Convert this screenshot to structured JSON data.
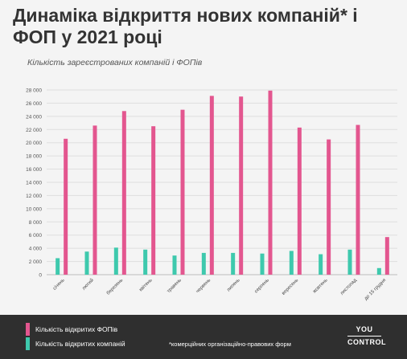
{
  "title": "Динаміка відкриття нових компаній* і ФОП у 2021 році",
  "subtitle": "Кількість зареєстрованих компаній і ФОПів",
  "footnote": "*комерційних організаційно-правових форм",
  "logo": {
    "line1": "YOU",
    "line2": "CONTROL"
  },
  "legend": [
    {
      "label": "Кількість відкритих ФОПів",
      "color": "#e3568f"
    },
    {
      "label": "Кількість відкритих компаній",
      "color": "#3ec9ad"
    }
  ],
  "colors": {
    "fop": "#e3568f",
    "companies": "#3ec9ad",
    "footer": "#2f2f2f"
  },
  "chart_data": {
    "type": "bar",
    "categories": [
      "січень",
      "лютий",
      "березень",
      "квітень",
      "травень",
      "червень",
      "липень",
      "серпень",
      "вересень",
      "жовтень",
      "листопад",
      "до 15 грудня"
    ],
    "series": [
      {
        "name": "Кількість відкритих компаній",
        "values": [
          2500,
          3500,
          4100,
          3800,
          2900,
          3300,
          3300,
          3200,
          3600,
          3100,
          3800,
          1000
        ]
      },
      {
        "name": "Кількість відкритих ФОПів",
        "values": [
          20600,
          22600,
          24800,
          22500,
          25000,
          27100,
          27000,
          27900,
          22300,
          20500,
          22700,
          5700
        ]
      }
    ],
    "ylim": [
      0,
      28000
    ],
    "yticks": [
      0,
      2000,
      4000,
      6000,
      8000,
      10000,
      12000,
      14000,
      16000,
      18000,
      20000,
      22000,
      24000,
      26000,
      28000
    ],
    "ytick_labels": [
      "0",
      "2 000",
      "4 000",
      "6 000",
      "8 000",
      "10 000",
      "12 000",
      "14 000",
      "16 000",
      "18 000",
      "20 000",
      "22 000",
      "24 000",
      "26 000",
      "28 000"
    ],
    "grid": true,
    "legend_position": "bottom-left"
  }
}
